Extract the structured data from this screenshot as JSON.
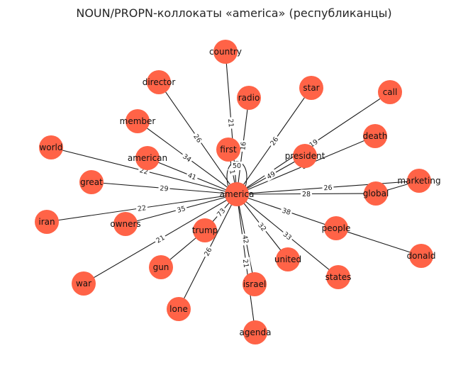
{
  "title": "NOUN/PROPN-коллокаты «america» (республиканцы)",
  "colors": {
    "node": "#ff6347",
    "edge": "#1a1a1a"
  },
  "center": "america",
  "center_self_weight": "50",
  "nodes": {
    "country": "country",
    "director": "director",
    "radio": "radio",
    "star": "star",
    "call": "call",
    "member": "member",
    "first": "first",
    "death": "death",
    "world": "world",
    "american": "american",
    "president": "president",
    "great": "great",
    "marketing": "marketing",
    "america": "america",
    "global": "global",
    "iran": "iran",
    "owners": "owners",
    "trump": "trump",
    "people": "people",
    "united": "united",
    "donald": "donald",
    "gun": "gun",
    "states": "states",
    "war": "war",
    "israel": "israel",
    "lone": "lone",
    "agenda": "agenda"
  },
  "edges": [
    {
      "source": "america",
      "target": "country",
      "weight": "21"
    },
    {
      "source": "america",
      "target": "director",
      "weight": "26"
    },
    {
      "source": "america",
      "target": "radio",
      "weight": "16"
    },
    {
      "source": "america",
      "target": "star",
      "weight": "26"
    },
    {
      "source": "america",
      "target": "call",
      "weight": "19"
    },
    {
      "source": "america",
      "target": "member",
      "weight": "34"
    },
    {
      "source": "america",
      "target": "first",
      "weight": "1"
    },
    {
      "source": "america",
      "target": "death",
      "weight": "23"
    },
    {
      "source": "america",
      "target": "world",
      "weight": "22"
    },
    {
      "source": "america",
      "target": "american",
      "weight": "41"
    },
    {
      "source": "america",
      "target": "president",
      "weight": "49"
    },
    {
      "source": "america",
      "target": "great",
      "weight": "29"
    },
    {
      "source": "america",
      "target": "marketing",
      "weight": "26"
    },
    {
      "source": "america",
      "target": "global",
      "weight": "28"
    },
    {
      "source": "america",
      "target": "iran",
      "weight": "22"
    },
    {
      "source": "america",
      "target": "owners",
      "weight": "35"
    },
    {
      "source": "america",
      "target": "trump",
      "weight": "73"
    },
    {
      "source": "america",
      "target": "people",
      "weight": "38"
    },
    {
      "source": "america",
      "target": "united",
      "weight": "32"
    },
    {
      "source": "america",
      "target": "states",
      "weight": "33"
    },
    {
      "source": "america",
      "target": "war",
      "weight": "21"
    },
    {
      "source": "america",
      "target": "israel",
      "weight": "42"
    },
    {
      "source": "america",
      "target": "lone",
      "weight": "26"
    },
    {
      "source": "america",
      "target": "agenda",
      "weight": "21"
    },
    {
      "source": "trump",
      "target": "gun",
      "weight": ""
    },
    {
      "source": "people",
      "target": "donald",
      "weight": ""
    },
    {
      "source": "global",
      "target": "marketing",
      "weight": ""
    }
  ]
}
